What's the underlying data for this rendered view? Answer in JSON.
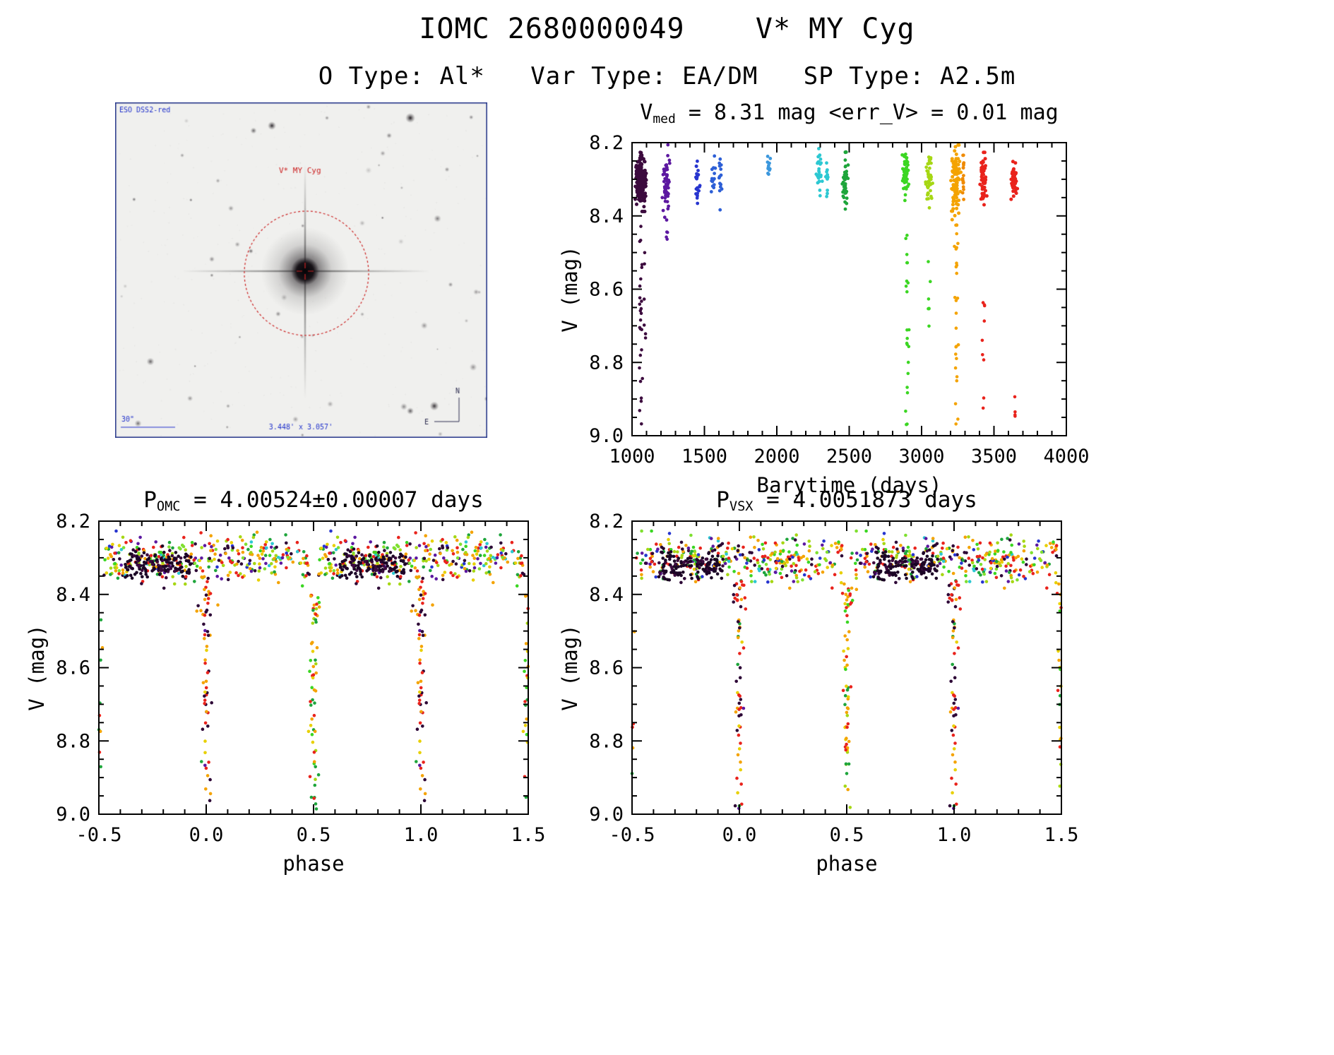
{
  "header": {
    "title": "IOMC 2680000049    V* MY Cyg",
    "subtitle": "O Type: Al*   Var Type: EA/DM   SP Type: A2.5m"
  },
  "finder": {
    "survey": "ESO DSS2-red",
    "target": "V* MY Cyg",
    "scale": "30\"",
    "fov": "3.448' x 3.057'",
    "north": "N",
    "east": "E",
    "frame_color": "#223388",
    "annotation_color": "#cc2222",
    "label_color": "#2233cc"
  },
  "chart_data": [
    {
      "id": "timeseries",
      "type": "scatter",
      "title": {
        "main": "V",
        "sub": "med",
        "rest": " = 8.31 mag <err_V> = 0.01 mag"
      },
      "xlabel": "Barytime (days)",
      "ylabel": "V (mag)",
      "xlim": [
        1000,
        4000
      ],
      "ylim": [
        8.2,
        9.0
      ],
      "y_inverted": true,
      "xticks": [
        1000,
        1500,
        2000,
        2500,
        3000,
        3500,
        4000
      ],
      "xtick_labels": [
        "1000",
        "1500",
        "2000",
        "2500",
        "3000",
        "3500",
        "4000"
      ],
      "yticks": [
        8.2,
        8.4,
        8.6,
        8.8,
        9.0
      ],
      "ytick_labels": [
        "8.2",
        "8.4",
        "8.6",
        "8.8",
        "9.0"
      ],
      "xminor": 100,
      "yminor": 0.05,
      "grid": false,
      "legend": false,
      "seed": 42,
      "fold": false,
      "clusters": [
        {
          "kind": "gauss",
          "x": 1035,
          "xs": 6,
          "y": 8.3,
          "ys": 0.035,
          "n": 40,
          "color": "#3c0b3e",
          "r": 2.5
        },
        {
          "kind": "gauss",
          "x": 1060,
          "xs": 6,
          "y": 8.3,
          "ys": 0.035,
          "n": 85,
          "color": "#3c0b3e",
          "r": 2.5
        },
        {
          "kind": "gauss",
          "x": 1085,
          "xs": 6,
          "y": 8.31,
          "ys": 0.03,
          "n": 50,
          "color": "#3c0b3e",
          "r": 2.5
        },
        {
          "kind": "trail",
          "x": 1060,
          "xs": 5,
          "y0": 8.4,
          "y1": 8.99,
          "n": 26,
          "color": "#3c0b3e",
          "r": 2.3
        },
        {
          "kind": "trail",
          "x": 1085,
          "xs": 5,
          "y0": 8.5,
          "y1": 8.75,
          "n": 6,
          "color": "#3c0b3e",
          "r": 2.3
        },
        {
          "kind": "gauss",
          "x": 1240,
          "xs": 12,
          "y": 8.31,
          "ys": 0.04,
          "n": 55,
          "color": "#5c18a0",
          "r": 2.4
        },
        {
          "kind": "trail",
          "x": 1240,
          "xs": 6,
          "y0": 8.42,
          "y1": 8.47,
          "n": 4,
          "color": "#5c18a0",
          "r": 2.3
        },
        {
          "kind": "gauss",
          "x": 1450,
          "xs": 10,
          "y": 8.3,
          "ys": 0.028,
          "n": 22,
          "color": "#2735cf",
          "r": 2.4
        },
        {
          "kind": "gauss",
          "x": 1560,
          "xs": 8,
          "y": 8.3,
          "ys": 0.03,
          "n": 14,
          "color": "#2d5fd6",
          "r": 2.4
        },
        {
          "kind": "gauss",
          "x": 1610,
          "xs": 6,
          "y": 8.31,
          "ys": 0.035,
          "n": 14,
          "color": "#2d5fd6",
          "r": 2.4
        },
        {
          "kind": "gauss",
          "x": 1945,
          "xs": 8,
          "y": 8.265,
          "ys": 0.018,
          "n": 12,
          "color": "#3b97dd",
          "r": 2.4
        },
        {
          "kind": "gauss",
          "x": 2290,
          "xs": 12,
          "y": 8.28,
          "ys": 0.025,
          "n": 30,
          "color": "#2cc8d2",
          "r": 2.4
        },
        {
          "kind": "gauss",
          "x": 2345,
          "xs": 6,
          "y": 8.295,
          "ys": 0.02,
          "n": 12,
          "color": "#2cc8d2",
          "r": 2.4
        },
        {
          "kind": "gauss",
          "x": 2470,
          "xs": 9,
          "y": 8.31,
          "ys": 0.04,
          "n": 45,
          "color": "#1ea53b",
          "r": 2.4
        },
        {
          "kind": "gauss",
          "x": 2890,
          "xs": 10,
          "y": 8.285,
          "ys": 0.03,
          "n": 60,
          "color": "#3bd622",
          "r": 2.4
        },
        {
          "kind": "trail",
          "x": 2900,
          "xs": 5,
          "y0": 8.45,
          "y1": 8.99,
          "n": 22,
          "color": "#3bd622",
          "r": 2.3
        },
        {
          "kind": "gauss",
          "x": 3050,
          "xs": 10,
          "y": 8.3,
          "ys": 0.03,
          "n": 50,
          "color": "#a6d714",
          "r": 2.4
        },
        {
          "kind": "trail",
          "x": 3052,
          "xs": 5,
          "y0": 8.5,
          "y1": 8.72,
          "n": 7,
          "color": "#3bd622",
          "r": 2.3
        },
        {
          "kind": "gauss",
          "x": 3235,
          "xs": 14,
          "y": 8.3,
          "ys": 0.05,
          "n": 100,
          "color": "#f4a300",
          "r": 2.5
        },
        {
          "kind": "trail",
          "x": 3240,
          "xs": 6,
          "y0": 8.42,
          "y1": 8.97,
          "n": 26,
          "color": "#f4a300",
          "r": 2.3
        },
        {
          "kind": "gauss",
          "x": 3290,
          "xs": 6,
          "y": 8.29,
          "ys": 0.025,
          "n": 18,
          "color": "#ef8a00",
          "r": 2.4
        },
        {
          "kind": "gauss",
          "x": 3425,
          "xs": 10,
          "y": 8.3,
          "ys": 0.03,
          "n": 60,
          "color": "#e9231c",
          "r": 2.5
        },
        {
          "kind": "trail",
          "x": 3428,
          "xs": 5,
          "y0": 8.62,
          "y1": 8.94,
          "n": 9,
          "color": "#e9231c",
          "r": 2.3
        },
        {
          "kind": "gauss",
          "x": 3640,
          "xs": 10,
          "y": 8.305,
          "ys": 0.022,
          "n": 55,
          "color": "#e9231c",
          "r": 2.5
        },
        {
          "kind": "trail",
          "x": 3645,
          "xs": 4,
          "y0": 8.89,
          "y1": 8.95,
          "n": 4,
          "color": "#e9231c",
          "r": 2.3
        }
      ]
    },
    {
      "id": "phase_omc",
      "type": "scatter",
      "title": {
        "main": "P",
        "sub": "OMC",
        "rest": " = 4.00524±0.00007 days"
      },
      "xlabel": "phase",
      "ylabel": "V (mag)",
      "xlim": [
        -0.5,
        1.5
      ],
      "ylim": [
        8.2,
        9.0
      ],
      "y_inverted": true,
      "xticks": [
        -0.5,
        0.0,
        0.5,
        1.0,
        1.5
      ],
      "xtick_labels": [
        "-0.5",
        "0.0",
        "0.5",
        "1.0",
        "1.5"
      ],
      "yticks": [
        8.2,
        8.4,
        8.6,
        8.8,
        9.0
      ],
      "ytick_labels": [
        "8.2",
        "8.4",
        "8.6",
        "8.8",
        "9.0"
      ],
      "xminor": 0.1,
      "yminor": 0.05,
      "grid": false,
      "legend": false,
      "seed": 101,
      "fold": true,
      "clusters": [
        {
          "kind": "band",
          "x0": -0.48,
          "x1": 0.48,
          "y": 8.305,
          "ys": 0.03,
          "n": 330,
          "r": 2.3,
          "palette": [
            [
              "#e9231c",
              0.17
            ],
            [
              "#f4a300",
              0.15
            ],
            [
              "#e8d000",
              0.05
            ],
            [
              "#a6d714",
              0.1
            ],
            [
              "#1ea53b",
              0.09
            ],
            [
              "#3bd622",
              0.06
            ],
            [
              "#5c18a0",
              0.07
            ],
            [
              "#2d0636",
              0.13
            ],
            [
              "#2cc8d2",
              0.05
            ],
            [
              "#2735cf",
              0.05
            ],
            [
              "#7fe030",
              0.08
            ]
          ]
        },
        {
          "kind": "band",
          "x0": -0.38,
          "x1": -0.07,
          "y": 8.32,
          "ys": 0.02,
          "n": 140,
          "r": 2.3,
          "palette": [
            [
              "#1c0526",
              0.75
            ],
            [
              "#3c0b3e",
              0.25
            ]
          ]
        },
        {
          "kind": "trail",
          "x": 0.0,
          "xs": 0.01,
          "y0": 8.4,
          "y1": 8.99,
          "n": 46,
          "r": 2.3,
          "palette": [
            [
              "#2d0636",
              0.28
            ],
            [
              "#e9231c",
              0.22
            ],
            [
              "#f4a300",
              0.22
            ],
            [
              "#e8d000",
              0.12
            ],
            [
              "#1ea53b",
              0.08
            ],
            [
              "#5c18a0",
              0.08
            ]
          ]
        },
        {
          "kind": "trail",
          "x": 0.0,
          "xs": 0.022,
          "y0": 8.34,
          "y1": 8.46,
          "n": 18,
          "r": 2.3,
          "palette": [
            [
              "#2d0636",
              0.3
            ],
            [
              "#e9231c",
              0.3
            ],
            [
              "#f4a300",
              0.4
            ]
          ]
        },
        {
          "kind": "trail",
          "x": 0.5,
          "xs": 0.009,
          "y0": 8.4,
          "y1": 8.99,
          "n": 38,
          "r": 2.3,
          "palette": [
            [
              "#f4a300",
              0.35
            ],
            [
              "#e8d000",
              0.18
            ],
            [
              "#1ea53b",
              0.18
            ],
            [
              "#3bd622",
              0.12
            ],
            [
              "#e9231c",
              0.09
            ],
            [
              "#a6d714",
              0.08
            ]
          ]
        },
        {
          "kind": "trail",
          "x": 0.5,
          "xs": 0.02,
          "y0": 8.34,
          "y1": 8.46,
          "n": 14,
          "r": 2.3,
          "palette": [
            [
              "#f4a300",
              0.5
            ],
            [
              "#3bd622",
              0.25
            ],
            [
              "#e9231c",
              0.25
            ]
          ]
        },
        {
          "kind": "trail",
          "x": -0.499,
          "xs": 0.006,
          "y0": 8.44,
          "y1": 8.9,
          "n": 12,
          "r": 2.3,
          "palette": [
            [
              "#e9231c",
              0.3
            ],
            [
              "#f4a300",
              0.4
            ],
            [
              "#1ea53b",
              0.3
            ]
          ]
        }
      ]
    },
    {
      "id": "phase_vsx",
      "type": "scatter",
      "title": {
        "main": "P",
        "sub": "VSX",
        "rest": " = 4.0051873 days"
      },
      "xlabel": "phase",
      "ylabel": "V (mag)",
      "xlim": [
        -0.5,
        1.5
      ],
      "ylim": [
        8.2,
        9.0
      ],
      "y_inverted": true,
      "xticks": [
        -0.5,
        0.0,
        0.5,
        1.0,
        1.5
      ],
      "xtick_labels": [
        "-0.5",
        "0.0",
        "0.5",
        "1.0",
        "1.5"
      ],
      "yticks": [
        8.2,
        8.4,
        8.6,
        8.8,
        9.0
      ],
      "ytick_labels": [
        "8.2",
        "8.4",
        "8.6",
        "8.8",
        "9.0"
      ],
      "xminor": 0.1,
      "yminor": 0.05,
      "grid": false,
      "legend": false,
      "seed": 202,
      "fold": true,
      "clusters": [
        {
          "kind": "band",
          "x0": -0.48,
          "x1": 0.48,
          "y": 8.305,
          "ys": 0.03,
          "n": 330,
          "r": 2.3,
          "palette": [
            [
              "#e9231c",
              0.17
            ],
            [
              "#f4a300",
              0.15
            ],
            [
              "#e8d000",
              0.05
            ],
            [
              "#a6d714",
              0.1
            ],
            [
              "#1ea53b",
              0.09
            ],
            [
              "#3bd622",
              0.06
            ],
            [
              "#5c18a0",
              0.07
            ],
            [
              "#2d0636",
              0.13
            ],
            [
              "#2cc8d2",
              0.05
            ],
            [
              "#2735cf",
              0.05
            ],
            [
              "#7fe030",
              0.08
            ]
          ]
        },
        {
          "kind": "band",
          "x0": -0.38,
          "x1": -0.07,
          "y": 8.32,
          "ys": 0.02,
          "n": 140,
          "r": 2.3,
          "palette": [
            [
              "#1c0526",
              0.75
            ],
            [
              "#3c0b3e",
              0.25
            ]
          ]
        },
        {
          "kind": "trail",
          "x": 0.0,
          "xs": 0.01,
          "y0": 8.4,
          "y1": 8.99,
          "n": 46,
          "r": 2.3,
          "palette": [
            [
              "#2d0636",
              0.28
            ],
            [
              "#e9231c",
              0.22
            ],
            [
              "#f4a300",
              0.22
            ],
            [
              "#e8d000",
              0.12
            ],
            [
              "#1ea53b",
              0.08
            ],
            [
              "#5c18a0",
              0.08
            ]
          ]
        },
        {
          "kind": "trail",
          "x": 0.0,
          "xs": 0.022,
          "y0": 8.34,
          "y1": 8.46,
          "n": 18,
          "r": 2.3,
          "palette": [
            [
              "#2d0636",
              0.3
            ],
            [
              "#e9231c",
              0.3
            ],
            [
              "#f4a300",
              0.4
            ]
          ]
        },
        {
          "kind": "trail",
          "x": 0.5,
          "xs": 0.009,
          "y0": 8.4,
          "y1": 8.99,
          "n": 38,
          "r": 2.3,
          "palette": [
            [
              "#f4a300",
              0.35
            ],
            [
              "#e8d000",
              0.18
            ],
            [
              "#1ea53b",
              0.18
            ],
            [
              "#3bd622",
              0.12
            ],
            [
              "#e9231c",
              0.09
            ],
            [
              "#a6d714",
              0.08
            ]
          ]
        },
        {
          "kind": "trail",
          "x": 0.5,
          "xs": 0.02,
          "y0": 8.34,
          "y1": 8.46,
          "n": 14,
          "r": 2.3,
          "palette": [
            [
              "#f4a300",
              0.5
            ],
            [
              "#3bd622",
              0.25
            ],
            [
              "#e9231c",
              0.25
            ]
          ]
        },
        {
          "kind": "trail",
          "x": -0.499,
          "xs": 0.006,
          "y0": 8.44,
          "y1": 8.9,
          "n": 12,
          "r": 2.3,
          "palette": [
            [
              "#e9231c",
              0.3
            ],
            [
              "#f4a300",
              0.4
            ],
            [
              "#1ea53b",
              0.3
            ]
          ]
        }
      ]
    }
  ]
}
